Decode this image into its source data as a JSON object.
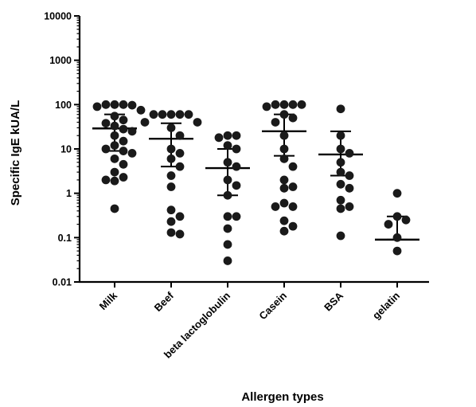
{
  "chart_data": {
    "type": "scatter",
    "subtype": "dot-plot-with-median-and-iqr",
    "title": "",
    "xlabel": "Allergen types",
    "ylabel": "Specific IgE kUA/L",
    "y_scale": "log",
    "ylim": [
      0.01,
      10000
    ],
    "y_ticks": [
      {
        "value": 0.01,
        "label": "0.01"
      },
      {
        "value": 0.1,
        "label": "0.1"
      },
      {
        "value": 1,
        "label": "1"
      },
      {
        "value": 10,
        "label": "10"
      },
      {
        "value": 100,
        "label": "100"
      },
      {
        "value": 1000,
        "label": "1000"
      },
      {
        "value": 10000,
        "label": "10000"
      }
    ],
    "categories": [
      "Milk",
      "Beef",
      "beta lactoglobulin",
      "Casein",
      "BSA",
      "gelatin"
    ],
    "groups": [
      {
        "name": "Milk",
        "median": 29,
        "q1": 9,
        "q3": 60,
        "points": [
          100,
          100,
          100,
          97,
          90,
          75,
          55,
          45,
          38,
          33,
          28,
          25,
          20,
          15,
          12,
          10,
          9,
          8,
          6,
          4.5,
          3,
          2.3,
          2,
          1.9,
          0.45
        ]
      },
      {
        "name": "Beef",
        "median": 17,
        "q1": 4,
        "q3": 38,
        "points": [
          60,
          60,
          60,
          60,
          60,
          40,
          40,
          30,
          20,
          10,
          8,
          6,
          4,
          2.5,
          1.4,
          0.42,
          0.3,
          0.23,
          0.13,
          0.12
        ]
      },
      {
        "name": "beta lactoglobulin",
        "median": 3.7,
        "q1": 0.9,
        "q3": 10,
        "points": [
          20,
          20,
          18,
          12,
          10,
          5,
          4,
          2,
          1.5,
          0.9,
          0.3,
          0.3,
          0.16,
          0.07,
          0.03
        ]
      },
      {
        "name": "Casein",
        "median": 25,
        "q1": 7,
        "q3": 60,
        "points": [
          100,
          100,
          100,
          100,
          90,
          60,
          50,
          40,
          20,
          10,
          6,
          4,
          2,
          1.4,
          1.3,
          0.6,
          0.5,
          0.5,
          0.24,
          0.18,
          0.14
        ]
      },
      {
        "name": "BSA",
        "median": 7.5,
        "q1": 2.5,
        "q3": 25,
        "points": [
          80,
          20,
          10,
          8,
          5,
          3,
          2.5,
          1.6,
          1.3,
          0.7,
          0.5,
          0.45,
          0.11
        ]
      },
      {
        "name": "gelatin",
        "median": 0.09,
        "q1": 0.09,
        "q3": 0.3,
        "points": [
          1,
          0.3,
          0.25,
          0.2,
          0.1,
          0.05
        ]
      }
    ],
    "marker": "filled-circle",
    "marker_color": "#1a1a1a",
    "summary_line_color": "#000000"
  }
}
